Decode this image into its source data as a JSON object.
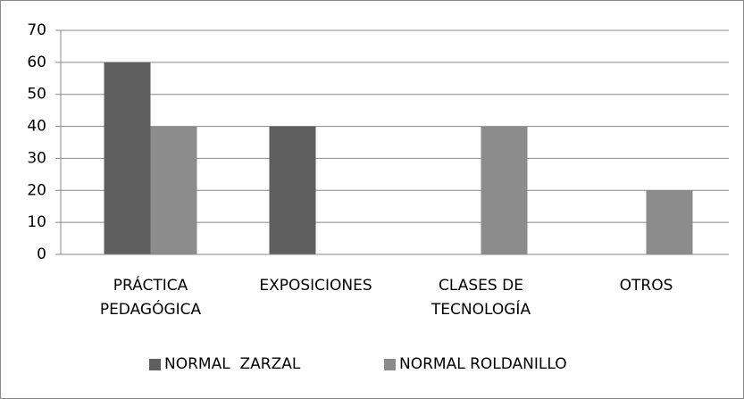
{
  "chart_data": {
    "type": "bar",
    "categories": [
      "PRÁCTICA PEDAGÓGICA",
      "EXPOSICIONES",
      "CLASES DE TECNOLOGÍA",
      "OTROS"
    ],
    "series": [
      {
        "name": "NORMAL  ZARZAL",
        "color": "#5f5f5f",
        "values": [
          60,
          40,
          0,
          0
        ]
      },
      {
        "name": "NORMAL ROLDANILLO",
        "color": "#8c8c8c",
        "values": [
          40,
          0,
          40,
          20
        ]
      }
    ],
    "ylim": [
      0,
      70
    ],
    "yticks": [
      0,
      10,
      20,
      30,
      40,
      50,
      60,
      70
    ],
    "grid": true,
    "legend": "bottom"
  }
}
